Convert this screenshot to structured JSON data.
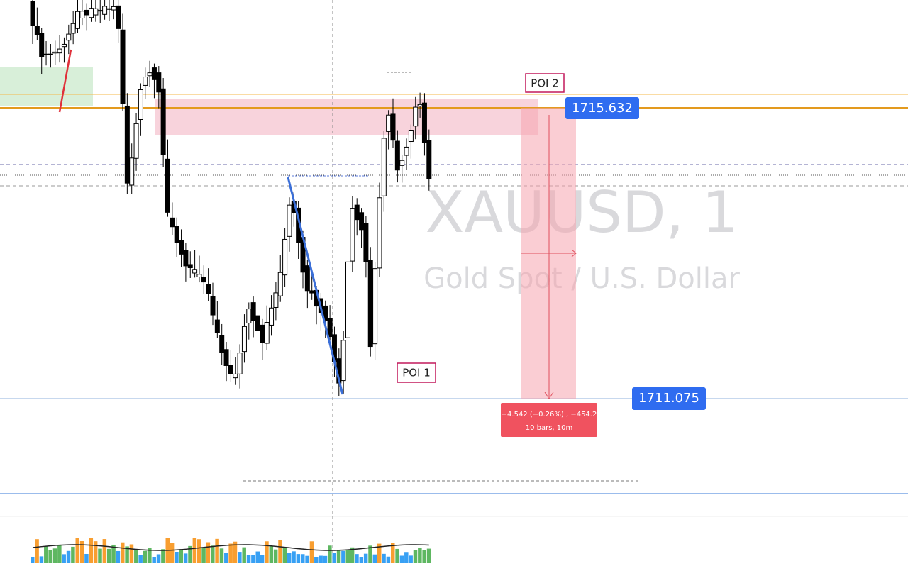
{
  "watermark": {
    "symbol": "XAUUSD, 1",
    "description": "Gold Spot / U.S. Dollar"
  },
  "annotations": {
    "poi_2": "POI 2",
    "poi_1": "POI 1"
  },
  "price_labels": {
    "upper": "1715.632",
    "lower": "1711.075"
  },
  "measure": {
    "change": "−4.542 (−0.26%) , −454.2",
    "duration": "10 bars, 10m"
  }
}
